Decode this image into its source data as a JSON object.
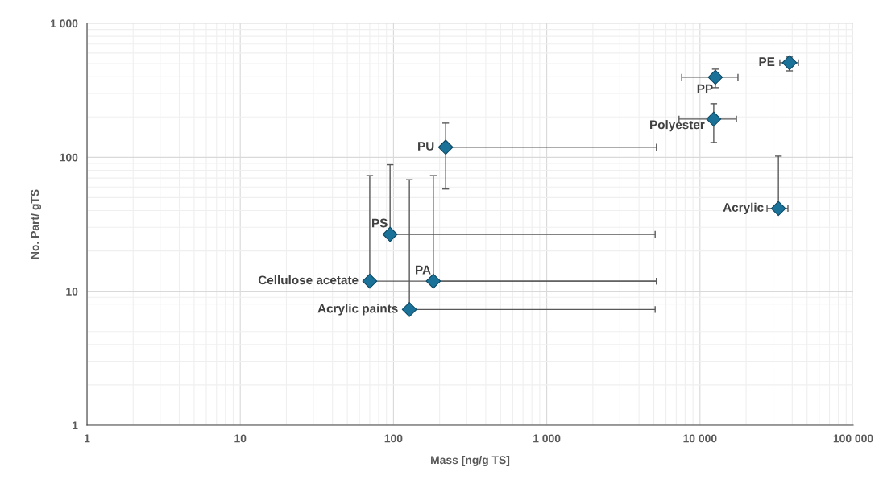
{
  "chart_data": {
    "type": "scatter",
    "xlabel": "Mass [ng/g TS]",
    "ylabel": "No. Part/ gTS",
    "log": "xy",
    "xlim": [
      1,
      100000
    ],
    "ylim": [
      1,
      1000
    ],
    "xticks": [
      1,
      10,
      100,
      {
        "value": 1000,
        "label": "1 000"
      },
      {
        "value": 10000,
        "label": "10 000"
      },
      {
        "value": 100000,
        "label": "100 000"
      }
    ],
    "yticks": [
      1,
      10,
      100,
      {
        "value": 1000,
        "label": "1 000"
      }
    ],
    "grid": true,
    "marker": "diamond",
    "series": [
      {
        "color": "#1b7299",
        "x": [
          38400,
          12600,
          12300,
          32500,
          219,
          95,
          70,
          182,
          127
        ],
        "values": [
          508,
          396,
          193,
          41.5,
          119,
          26.6,
          11.9,
          11.9,
          7.3
        ],
        "xerrors": [
          [
            33200,
            43900
          ],
          [
            7600,
            17700
          ],
          [
            7300,
            17300
          ],
          [
            27400,
            37500
          ],
          [
            219,
            5200
          ],
          [
            95,
            5100
          ],
          [
            70,
            5200
          ],
          [
            182,
            5200
          ],
          [
            127,
            5100
          ]
        ],
        "errors": [
          [
            442,
            560
          ],
          [
            331,
            455
          ],
          [
            129,
            251
          ],
          [
            41.5,
            102
          ],
          [
            58,
            180
          ],
          [
            26.6,
            88
          ],
          [
            11.9,
            73
          ],
          [
            11.9,
            73
          ],
          [
            7.3,
            68
          ]
        ]
      }
    ],
    "annotations": [
      {
        "text": "PE",
        "x": 38400,
        "y": 508
      },
      {
        "text": "PP",
        "x": 12600,
        "y": 396
      },
      {
        "text": "Polyester",
        "x": 12300,
        "y": 193
      },
      {
        "text": "Acrylic",
        "x": 32500,
        "y": 41.5
      },
      {
        "text": "PU",
        "x": 219,
        "y": 119
      },
      {
        "text": "PS",
        "x": 95,
        "y": 26.6
      },
      {
        "text": "Cellulose acetate",
        "x": 70,
        "y": 11.9
      },
      {
        "text": "PA",
        "x": 182,
        "y": 11.9
      },
      {
        "text": "Acrylic paints",
        "x": 127,
        "y": 7.3
      }
    ]
  }
}
